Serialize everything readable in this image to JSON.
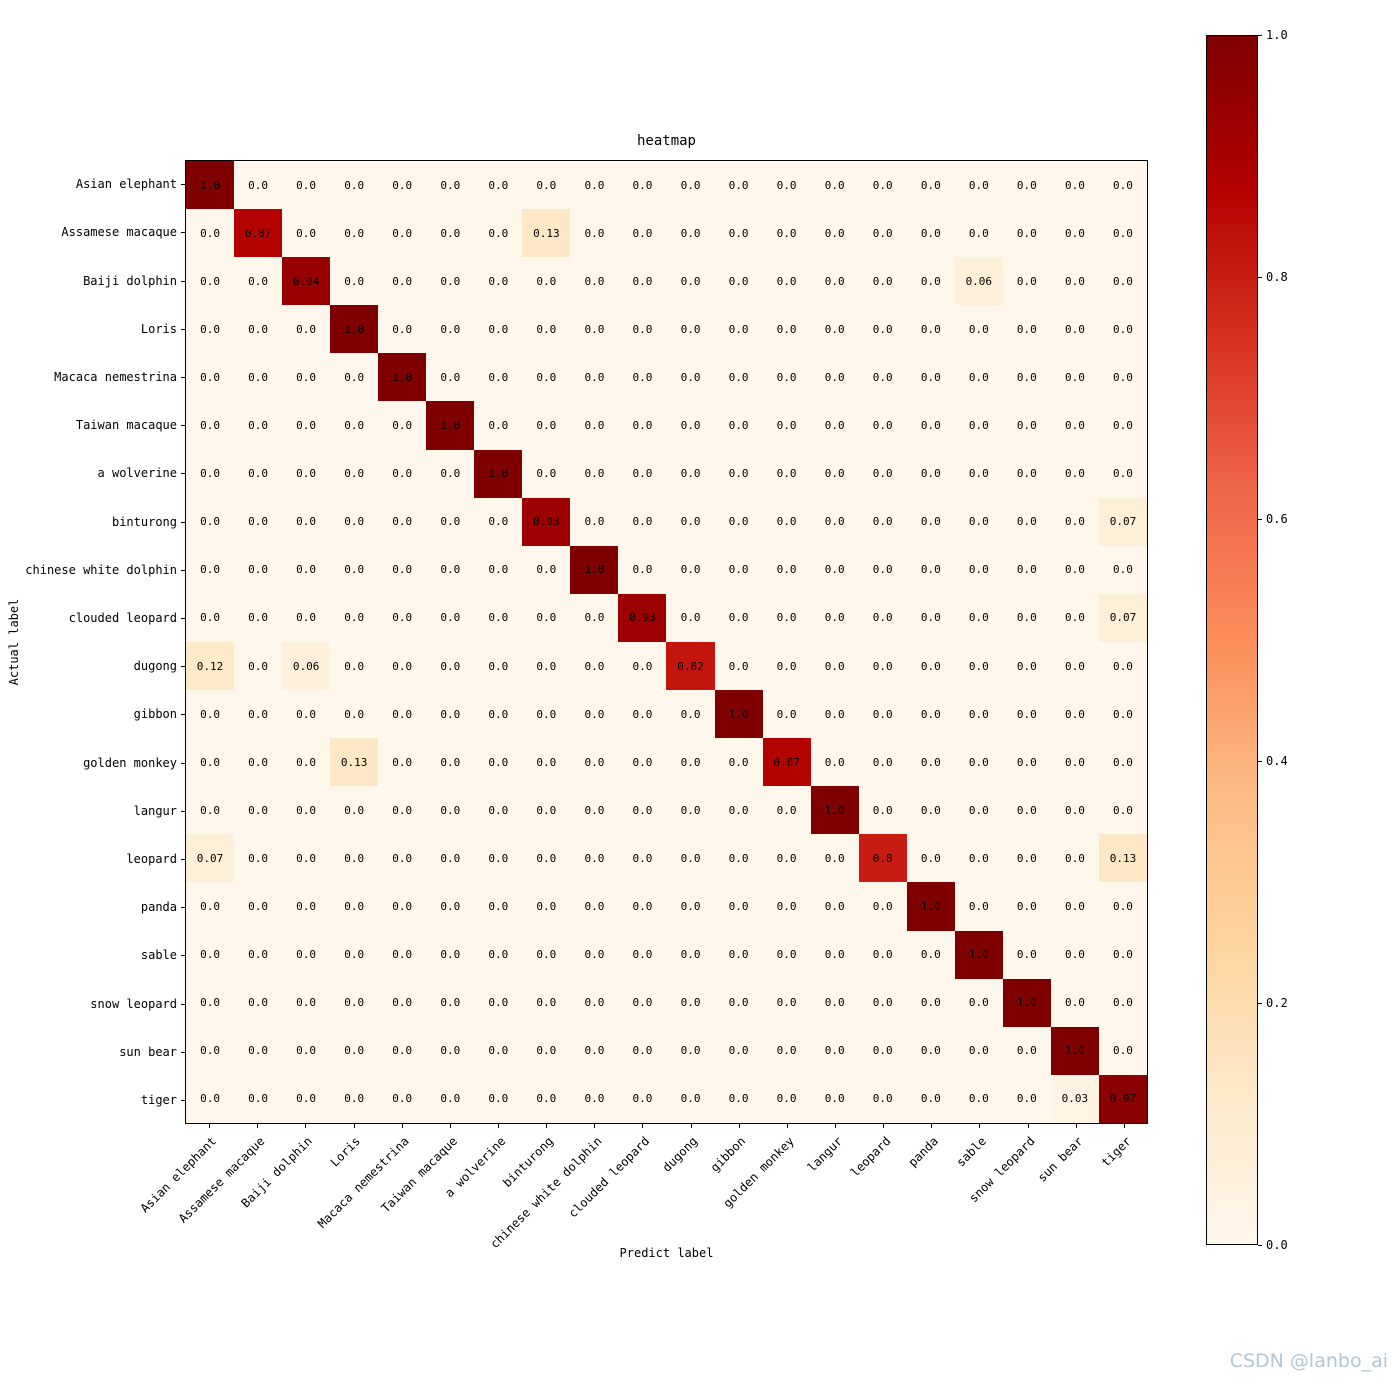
{
  "chart_data": {
    "type": "heatmap",
    "title": "heatmap",
    "xlabel": "Predict label",
    "ylabel": "Actual label",
    "categories": [
      "Asian elephant",
      "Assamese macaque",
      "Baiji dolphin",
      "Loris",
      "Macaca nemestrina",
      "Taiwan macaque",
      "a wolverine",
      "binturong",
      "chinese white dolphin",
      "clouded leopard",
      "dugong",
      "gibbon",
      "golden monkey",
      "langur",
      "leopard",
      "panda",
      "sable",
      "snow leopard",
      "sun bear",
      "tiger"
    ],
    "matrix": [
      [
        1,
        0,
        0,
        0,
        0,
        0,
        0,
        0,
        0,
        0,
        0,
        0,
        0,
        0,
        0,
        0,
        0,
        0,
        0,
        0
      ],
      [
        0,
        0.87,
        0,
        0,
        0,
        0,
        0,
        0.13,
        0,
        0,
        0,
        0,
        0,
        0,
        0,
        0,
        0,
        0,
        0,
        0
      ],
      [
        0,
        0,
        0.94,
        0,
        0,
        0,
        0,
        0,
        0,
        0,
        0,
        0,
        0,
        0,
        0,
        0,
        0.06,
        0,
        0,
        0
      ],
      [
        0,
        0,
        0,
        1,
        0,
        0,
        0,
        0,
        0,
        0,
        0,
        0,
        0,
        0,
        0,
        0,
        0,
        0,
        0,
        0
      ],
      [
        0,
        0,
        0,
        0,
        1,
        0,
        0,
        0,
        0,
        0,
        0,
        0,
        0,
        0,
        0,
        0,
        0,
        0,
        0,
        0
      ],
      [
        0,
        0,
        0,
        0,
        0,
        1,
        0,
        0,
        0,
        0,
        0,
        0,
        0,
        0,
        0,
        0,
        0,
        0,
        0,
        0
      ],
      [
        0,
        0,
        0,
        0,
        0,
        0,
        1,
        0,
        0,
        0,
        0,
        0,
        0,
        0,
        0,
        0,
        0,
        0,
        0,
        0
      ],
      [
        0,
        0,
        0,
        0,
        0,
        0,
        0,
        0.93,
        0,
        0,
        0,
        0,
        0,
        0,
        0,
        0,
        0,
        0,
        0,
        0.07
      ],
      [
        0,
        0,
        0,
        0,
        0,
        0,
        0,
        0,
        1,
        0,
        0,
        0,
        0,
        0,
        0,
        0,
        0,
        0,
        0,
        0
      ],
      [
        0,
        0,
        0,
        0,
        0,
        0,
        0,
        0,
        0,
        0.93,
        0,
        0,
        0,
        0,
        0,
        0,
        0,
        0,
        0,
        0.07
      ],
      [
        0.12,
        0,
        0.06,
        0,
        0,
        0,
        0,
        0,
        0,
        0,
        0.82,
        0,
        0,
        0,
        0,
        0,
        0,
        0,
        0,
        0
      ],
      [
        0,
        0,
        0,
        0,
        0,
        0,
        0,
        0,
        0,
        0,
        0,
        1,
        0,
        0,
        0,
        0,
        0,
        0,
        0,
        0
      ],
      [
        0,
        0,
        0,
        0.13,
        0,
        0,
        0,
        0,
        0,
        0,
        0,
        0,
        0.87,
        0,
        0,
        0,
        0,
        0,
        0,
        0
      ],
      [
        0,
        0,
        0,
        0,
        0,
        0,
        0,
        0,
        0,
        0,
        0,
        0,
        0,
        1,
        0,
        0,
        0,
        0,
        0,
        0
      ],
      [
        0.07,
        0,
        0,
        0,
        0,
        0,
        0,
        0,
        0,
        0,
        0,
        0,
        0,
        0,
        0.8,
        0,
        0,
        0,
        0,
        0.13
      ],
      [
        0,
        0,
        0,
        0,
        0,
        0,
        0,
        0,
        0,
        0,
        0,
        0,
        0,
        0,
        0,
        1,
        0,
        0,
        0,
        0
      ],
      [
        0,
        0,
        0,
        0,
        0,
        0,
        0,
        0,
        0,
        0,
        0,
        0,
        0,
        0,
        0,
        0,
        1,
        0,
        0,
        0
      ],
      [
        0,
        0,
        0,
        0,
        0,
        0,
        0,
        0,
        0,
        0,
        0,
        0,
        0,
        0,
        0,
        0,
        0,
        1,
        0,
        0
      ],
      [
        0,
        0,
        0,
        0,
        0,
        0,
        0,
        0,
        0,
        0,
        0,
        0,
        0,
        0,
        0,
        0,
        0,
        0,
        1,
        0
      ],
      [
        0,
        0,
        0,
        0,
        0,
        0,
        0,
        0,
        0,
        0,
        0,
        0,
        0,
        0,
        0,
        0,
        0,
        0,
        0.03,
        0.97
      ]
    ],
    "vmin": 0.0,
    "vmax": 1.0,
    "colormap": {
      "name": "OrRd",
      "stops": [
        "#fff7ec",
        "#fee8c8",
        "#fdd49e",
        "#fdbb84",
        "#fc8d59",
        "#ef6548",
        "#d7301f",
        "#b30000",
        "#7f0000"
      ]
    },
    "colorbar_ticks": [
      "1.0",
      "0.8",
      "0.6",
      "0.4",
      "0.2",
      "0.0"
    ],
    "legend_position": "right-colorbar",
    "grid": false
  },
  "watermark": {
    "text": "CSDN @lanbo_ai",
    "color": "#b3c6d6"
  }
}
